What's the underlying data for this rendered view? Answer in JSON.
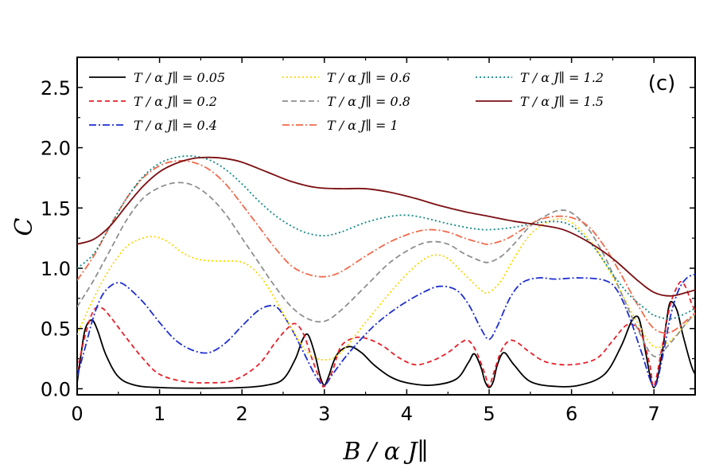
{
  "chart_data": {
    "type": "line",
    "title": "",
    "panel_label": "(c)",
    "xlabel": "B / α J∥",
    "ylabel": "C",
    "xlim": [
      0,
      7.5
    ],
    "ylim": [
      -0.05,
      2.75
    ],
    "xticks": [
      0,
      1,
      2,
      3,
      4,
      5,
      6,
      7
    ],
    "yticks": [
      0.0,
      0.5,
      1.0,
      1.5,
      2.0,
      2.5
    ],
    "ytick_labels": [
      "0.0",
      "0.5",
      "1.0",
      "1.5",
      "2.0",
      "2.5"
    ],
    "grid": false,
    "legend_position": "top",
    "series": [
      {
        "name": "T / α J∥ = 0.05",
        "color": "#000000",
        "dash": "solid",
        "x": [
          0,
          0.05,
          0.1,
          0.18,
          0.25,
          0.35,
          0.5,
          0.7,
          1.0,
          1.5,
          2.0,
          2.3,
          2.5,
          2.65,
          2.73,
          2.8,
          2.88,
          2.95,
          3.0,
          3.05,
          3.15,
          3.3,
          3.45,
          3.6,
          3.8,
          4.0,
          4.3,
          4.6,
          4.75,
          4.82,
          4.9,
          4.95,
          5.0,
          5.05,
          5.1,
          5.18,
          5.3,
          5.5,
          5.8,
          6.1,
          6.4,
          6.6,
          6.72,
          6.8,
          6.85,
          6.9,
          7.0,
          7.1,
          7.15,
          7.2,
          7.28,
          7.35,
          7.45,
          7.5
        ],
        "y": [
          0.05,
          0.3,
          0.5,
          0.57,
          0.48,
          0.28,
          0.1,
          0.03,
          0.01,
          0.005,
          0.01,
          0.03,
          0.08,
          0.25,
          0.4,
          0.45,
          0.3,
          0.1,
          0.03,
          0.1,
          0.28,
          0.35,
          0.3,
          0.2,
          0.1,
          0.05,
          0.03,
          0.08,
          0.22,
          0.29,
          0.18,
          0.06,
          0.01,
          0.06,
          0.2,
          0.3,
          0.2,
          0.06,
          0.02,
          0.03,
          0.12,
          0.35,
          0.55,
          0.6,
          0.5,
          0.3,
          0.01,
          0.3,
          0.55,
          0.72,
          0.65,
          0.45,
          0.2,
          0.12
        ]
      },
      {
        "name": "T / α J∥ = 0.2",
        "color": "#e8202a",
        "dash": "6,4",
        "x": [
          0,
          0.1,
          0.2,
          0.3,
          0.4,
          0.6,
          0.8,
          1.0,
          1.3,
          1.6,
          1.9,
          2.2,
          2.4,
          2.55,
          2.65,
          2.75,
          2.85,
          2.95,
          3.0,
          3.1,
          3.2,
          3.35,
          3.5,
          3.7,
          3.9,
          4.1,
          4.3,
          4.5,
          4.65,
          4.75,
          4.85,
          4.95,
          5.0,
          5.05,
          5.15,
          5.25,
          5.35,
          5.5,
          5.7,
          6.0,
          6.3,
          6.5,
          6.65,
          6.75,
          6.85,
          6.95,
          7.0,
          7.1,
          7.2,
          7.3,
          7.35,
          7.4,
          7.45,
          7.5
        ],
        "y": [
          0.15,
          0.45,
          0.65,
          0.67,
          0.6,
          0.42,
          0.25,
          0.12,
          0.06,
          0.05,
          0.07,
          0.2,
          0.38,
          0.5,
          0.54,
          0.45,
          0.25,
          0.07,
          0.02,
          0.15,
          0.35,
          0.42,
          0.42,
          0.36,
          0.26,
          0.2,
          0.23,
          0.3,
          0.38,
          0.4,
          0.3,
          0.12,
          0.02,
          0.12,
          0.32,
          0.4,
          0.38,
          0.3,
          0.22,
          0.2,
          0.25,
          0.4,
          0.52,
          0.53,
          0.45,
          0.2,
          0.02,
          0.35,
          0.7,
          0.87,
          0.88,
          0.82,
          0.72,
          0.65
        ]
      },
      {
        "name": "T / α J∥ = 0.4",
        "color": "#1f2fd1",
        "dash": "9,3,2,3",
        "x": [
          0,
          0.1,
          0.2,
          0.3,
          0.4,
          0.5,
          0.6,
          0.8,
          1.0,
          1.2,
          1.4,
          1.6,
          1.8,
          2.0,
          2.2,
          2.35,
          2.45,
          2.6,
          2.75,
          2.9,
          3.0,
          3.1,
          3.3,
          3.6,
          3.9,
          4.2,
          4.4,
          4.6,
          4.75,
          4.9,
          5.0,
          5.1,
          5.25,
          5.4,
          5.6,
          5.8,
          6.1,
          6.4,
          6.55,
          6.7,
          6.85,
          7.0,
          7.1,
          7.2,
          7.3,
          7.4,
          7.5
        ],
        "y": [
          0.1,
          0.35,
          0.6,
          0.77,
          0.85,
          0.88,
          0.85,
          0.72,
          0.55,
          0.4,
          0.32,
          0.3,
          0.38,
          0.52,
          0.65,
          0.69,
          0.66,
          0.5,
          0.3,
          0.1,
          0.03,
          0.12,
          0.3,
          0.52,
          0.68,
          0.8,
          0.85,
          0.82,
          0.7,
          0.5,
          0.41,
          0.52,
          0.75,
          0.88,
          0.92,
          0.91,
          0.92,
          0.9,
          0.82,
          0.6,
          0.3,
          0.02,
          0.25,
          0.6,
          0.82,
          0.92,
          0.95
        ]
      },
      {
        "name": "T / α J∥ = 0.6",
        "color": "#ffd400",
        "dash": "2,3",
        "x": [
          0,
          0.2,
          0.4,
          0.6,
          0.8,
          0.95,
          1.1,
          1.3,
          1.5,
          1.7,
          2.0,
          2.2,
          2.4,
          2.6,
          2.8,
          3.0,
          3.2,
          3.5,
          3.8,
          4.0,
          4.2,
          4.35,
          4.5,
          4.7,
          4.9,
          5.0,
          5.15,
          5.3,
          5.5,
          5.7,
          5.85,
          6.0,
          6.2,
          6.4,
          6.6,
          6.8,
          7.0,
          7.2,
          7.4,
          7.5
        ],
        "y": [
          0.45,
          0.75,
          1.0,
          1.18,
          1.25,
          1.26,
          1.22,
          1.12,
          1.07,
          1.06,
          1.05,
          0.95,
          0.75,
          0.5,
          0.3,
          0.24,
          0.3,
          0.55,
          0.8,
          0.95,
          1.07,
          1.11,
          1.08,
          0.95,
          0.82,
          0.8,
          0.9,
          1.08,
          1.28,
          1.38,
          1.41,
          1.38,
          1.25,
          1.05,
          0.8,
          0.55,
          0.35,
          0.4,
          0.55,
          0.62
        ]
      },
      {
        "name": "T / α J∥ = 0.8",
        "color": "#8f8f8f",
        "dash": "7,4",
        "x": [
          0,
          0.2,
          0.4,
          0.6,
          0.8,
          1.0,
          1.2,
          1.4,
          1.6,
          1.8,
          2.0,
          2.2,
          2.4,
          2.6,
          2.8,
          3.0,
          3.2,
          3.5,
          3.8,
          4.1,
          4.3,
          4.5,
          4.7,
          4.9,
          5.0,
          5.15,
          5.3,
          5.5,
          5.7,
          5.85,
          6.0,
          6.2,
          6.4,
          6.6,
          6.8,
          7.0,
          7.2,
          7.4,
          7.5
        ],
        "y": [
          0.68,
          0.9,
          1.15,
          1.4,
          1.58,
          1.67,
          1.71,
          1.69,
          1.6,
          1.45,
          1.25,
          1.05,
          0.85,
          0.68,
          0.58,
          0.56,
          0.65,
          0.85,
          1.05,
          1.18,
          1.22,
          1.2,
          1.12,
          1.06,
          1.05,
          1.1,
          1.2,
          1.35,
          1.44,
          1.48,
          1.46,
          1.33,
          1.1,
          0.8,
          0.5,
          0.27,
          0.38,
          0.55,
          0.62
        ]
      },
      {
        "name": "T / α J∥ = 1",
        "color": "#f26a4b",
        "dash": "9,3,2,3",
        "x": [
          0,
          0.2,
          0.4,
          0.6,
          0.8,
          1.0,
          1.2,
          1.4,
          1.6,
          1.8,
          2.0,
          2.2,
          2.4,
          2.6,
          2.8,
          3.0,
          3.2,
          3.5,
          3.8,
          4.1,
          4.3,
          4.5,
          4.7,
          4.9,
          5.0,
          5.2,
          5.4,
          5.6,
          5.8,
          6.0,
          6.2,
          6.4,
          6.6,
          6.8,
          7.0,
          7.2,
          7.4,
          7.5
        ],
        "y": [
          0.9,
          1.1,
          1.35,
          1.58,
          1.75,
          1.85,
          1.89,
          1.88,
          1.82,
          1.7,
          1.53,
          1.35,
          1.17,
          1.02,
          0.95,
          0.93,
          0.97,
          1.1,
          1.22,
          1.3,
          1.32,
          1.3,
          1.25,
          1.21,
          1.2,
          1.24,
          1.32,
          1.4,
          1.43,
          1.42,
          1.35,
          1.18,
          0.95,
          0.7,
          0.5,
          0.47,
          0.57,
          0.63
        ]
      },
      {
        "name": "T / α J∥ = 1.2",
        "color": "#128a86",
        "dash": "2,3",
        "x": [
          0,
          0.2,
          0.4,
          0.6,
          0.8,
          1.0,
          1.2,
          1.4,
          1.6,
          1.8,
          2.0,
          2.2,
          2.4,
          2.6,
          2.8,
          3.0,
          3.2,
          3.5,
          3.8,
          4.0,
          4.2,
          4.5,
          4.8,
          5.0,
          5.3,
          5.6,
          5.9,
          6.1,
          6.3,
          6.5,
          6.7,
          6.9,
          7.0,
          7.2,
          7.4,
          7.5
        ],
        "y": [
          1.0,
          1.12,
          1.35,
          1.58,
          1.76,
          1.87,
          1.92,
          1.93,
          1.9,
          1.82,
          1.7,
          1.56,
          1.44,
          1.35,
          1.29,
          1.27,
          1.3,
          1.38,
          1.43,
          1.44,
          1.42,
          1.37,
          1.33,
          1.32,
          1.34,
          1.38,
          1.38,
          1.3,
          1.15,
          0.95,
          0.78,
          0.66,
          0.61,
          0.58,
          0.63,
          0.67
        ]
      },
      {
        "name": "T / α J∥ = 1.5",
        "color": "#7b0f12",
        "dash": "solid",
        "x": [
          0,
          0.2,
          0.4,
          0.6,
          0.8,
          1.0,
          1.2,
          1.4,
          1.6,
          1.8,
          2.0,
          2.3,
          2.6,
          2.9,
          3.2,
          3.5,
          3.8,
          4.1,
          4.4,
          4.7,
          5.0,
          5.3,
          5.6,
          5.9,
          6.2,
          6.5,
          6.8,
          7.0,
          7.2,
          7.4,
          7.5
        ],
        "y": [
          1.2,
          1.24,
          1.35,
          1.52,
          1.68,
          1.8,
          1.87,
          1.91,
          1.92,
          1.91,
          1.88,
          1.8,
          1.72,
          1.67,
          1.66,
          1.66,
          1.63,
          1.58,
          1.52,
          1.47,
          1.43,
          1.39,
          1.36,
          1.32,
          1.22,
          1.08,
          0.9,
          0.8,
          0.77,
          0.8,
          0.82
        ]
      }
    ]
  }
}
